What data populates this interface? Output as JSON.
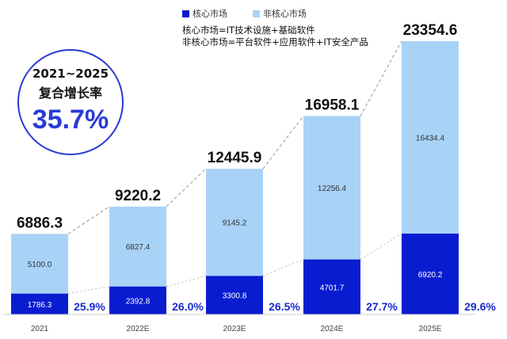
{
  "legend": {
    "core_label": "核心市场",
    "noncore_label": "非核心市场",
    "core_color": "#0a1cd0",
    "noncore_color": "#a9d2f7"
  },
  "notes": [
    "核心市场=IT技术设施+基础软件",
    "非核心市场=平台软件+应用软件+IT安全产品"
  ],
  "cagr": {
    "period": "2021~2025",
    "label": "复合增长率",
    "value": "35.7%"
  },
  "chart_data": {
    "type": "bar",
    "stacked": true,
    "categories": [
      "2021",
      "2022E",
      "2023E",
      "2024E",
      "2025E"
    ],
    "series": [
      {
        "name": "核心市场",
        "values": [
          1786.3,
          2392.8,
          3300.8,
          4701.7,
          6920.2
        ],
        "labels": [
          "1786.3",
          "2392.8",
          "3300.8",
          "4701.7",
          "6920.2"
        ]
      },
      {
        "name": "非核心市场",
        "values": [
          5100.0,
          6827.4,
          9145.2,
          12256.4,
          16434.4
        ],
        "labels": [
          "5100.0",
          "6827.4",
          "9145.2",
          "12256.4",
          "16434.4"
        ]
      }
    ],
    "totals": [
      6886.3,
      9220.2,
      12445.9,
      16958.1,
      23354.6
    ],
    "total_labels": [
      "6886.3",
      "9220.2",
      "12445.9",
      "16958.1",
      "23354.6"
    ],
    "core_share_labels": [
      "25.9%",
      "26.0%",
      "26.5%",
      "27.7%",
      "29.6%"
    ],
    "ylim": [
      0,
      23354.6
    ],
    "grid": false,
    "legend_position": "top"
  }
}
